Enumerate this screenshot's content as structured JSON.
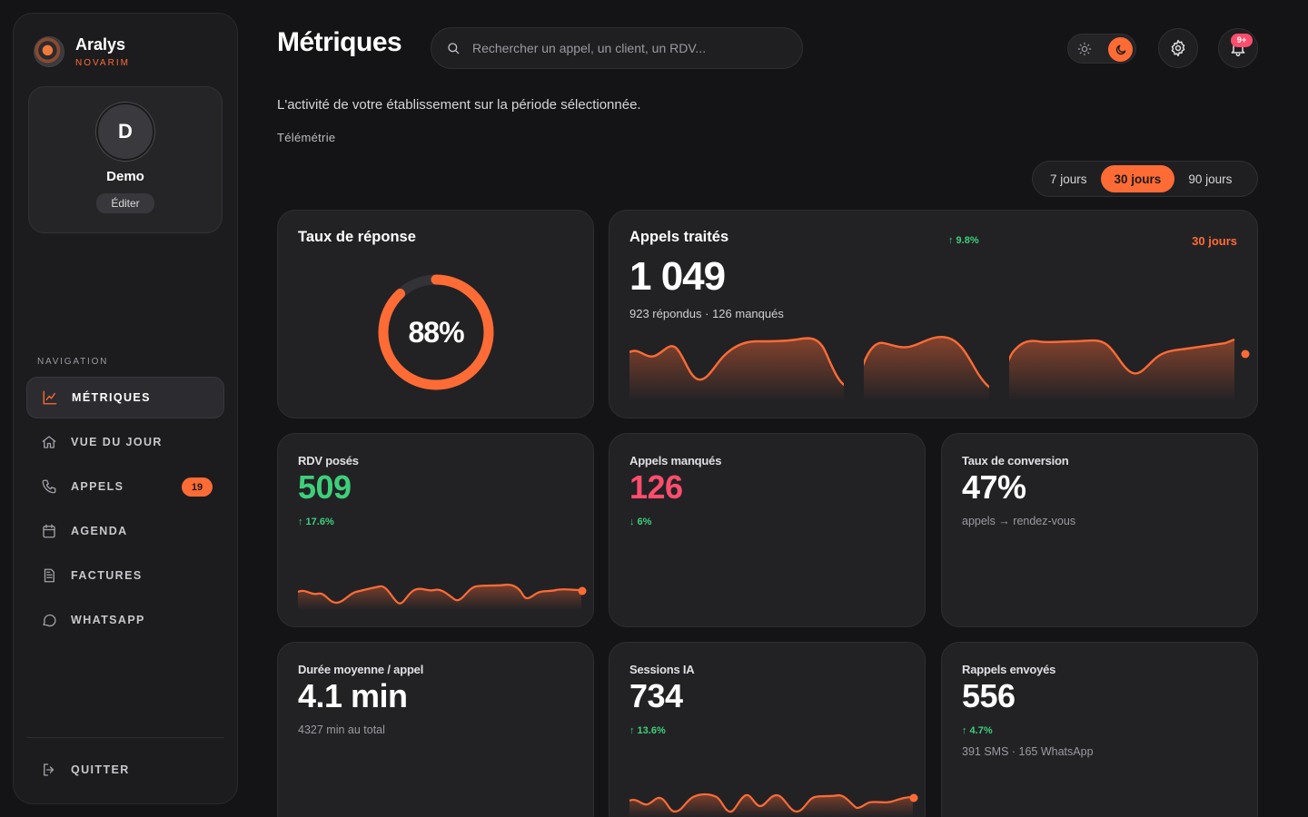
{
  "brand": {
    "name": "Aralys",
    "sub": "NOVARIM"
  },
  "profile": {
    "initial": "D",
    "name": "Demo",
    "edit_label": "Éditer"
  },
  "nav": {
    "title": "NAVIGATION",
    "items": [
      {
        "label": "MÉTRIQUES",
        "icon": "chart-line-icon",
        "active": true
      },
      {
        "label": "VUE DU JOUR",
        "icon": "home-icon"
      },
      {
        "label": "APPELS",
        "icon": "phone-icon",
        "badge": "19"
      },
      {
        "label": "AGENDA",
        "icon": "calendar-icon"
      },
      {
        "label": "FACTURES",
        "icon": "document-icon"
      },
      {
        "label": "WHATSAPP",
        "icon": "chat-bubble-icon"
      }
    ],
    "quit_label": "QUITTER"
  },
  "header": {
    "title": "Métriques",
    "search_placeholder": "Rechercher un appel, un client, un RDV...",
    "notif_badge": "9+"
  },
  "subtitle": "L'activité de votre établissement sur la période sélectionnée.",
  "section_label": "Télémétrie",
  "periods": [
    {
      "label": "7 jours",
      "active": false
    },
    {
      "label": "30 jours",
      "active": true
    },
    {
      "label": "90 jours",
      "active": false
    }
  ],
  "colors": {
    "accent": "#ff6b35",
    "positive": "#3ecf7a",
    "negative": "#ff4d6d"
  },
  "cards": {
    "response_rate": {
      "title": "Taux de réponse",
      "value": "88%",
      "fraction": 0.88
    },
    "calls": {
      "title": "Appels traités",
      "value": "1 049",
      "trend": "↑ 9.8%",
      "period": "30 jours",
      "note": "923 répondus · 126 manqués"
    },
    "rdv": {
      "label": "RDV posés",
      "value": "509",
      "trend": "↑ 17.6%"
    },
    "missed": {
      "label": "Appels manqués",
      "value": "126",
      "trend": "↓ 6%"
    },
    "conversion": {
      "label": "Taux de conversion",
      "value": "47%",
      "note": "appels → rendez-vous"
    },
    "duration": {
      "label": "Durée moyenne / appel",
      "value": "4.1 min",
      "note": "4327 min au total"
    },
    "sessions": {
      "label": "Sessions IA",
      "value": "734",
      "trend": "↑ 13.6%"
    },
    "reminders": {
      "label": "Rappels envoyés",
      "value": "556",
      "trend": "↑ 4.7%",
      "note": "391 SMS · 165 WhatsApp"
    }
  }
}
